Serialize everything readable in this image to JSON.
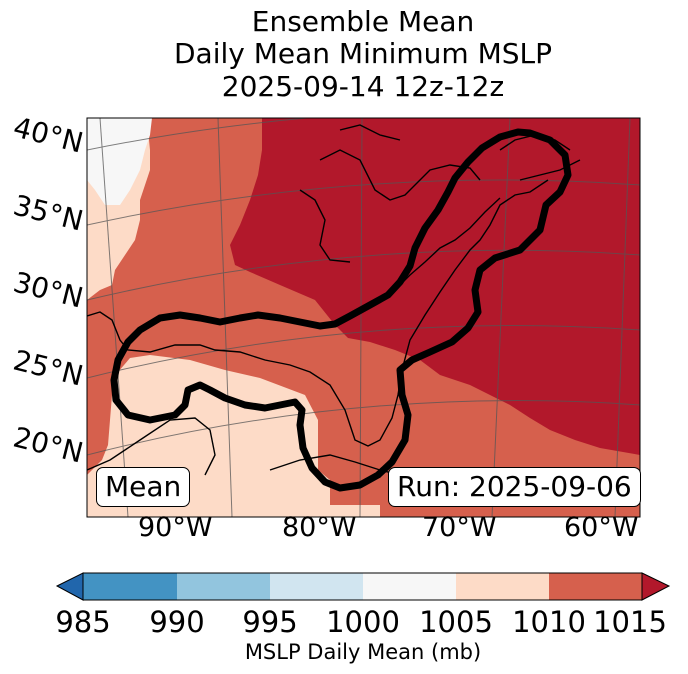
{
  "title": {
    "line1": "Ensemble Mean",
    "line2": "Daily Mean Minimum MSLP",
    "line3": "2025-09-14 12z-12z"
  },
  "map": {
    "lat_labels": [
      "40°N",
      "35°N",
      "30°N",
      "25°N",
      "20°N"
    ],
    "lon_labels": [
      "90°W",
      "80°W",
      "70°W",
      "60°W"
    ],
    "mean_label": "Mean",
    "run_label": "Run: 2025-09-06",
    "fill_colors": {
      "lt1000": "#f7f7f7",
      "1005_1010": "#fddbc7",
      "1010_1015": "#d6604d",
      "gt1015": "#b2182b"
    },
    "contour_color": "#000000"
  },
  "colorbar": {
    "label": "MSLP Daily Mean (mb)",
    "ticks": [
      "985",
      "990",
      "995",
      "1000",
      "1005",
      "1010",
      "1015"
    ],
    "colors": [
      "#2166ac",
      "#4393c3",
      "#92c5de",
      "#d1e5f0",
      "#f7f7f7",
      "#fddbc7",
      "#d6604d",
      "#b2182b"
    ]
  }
}
